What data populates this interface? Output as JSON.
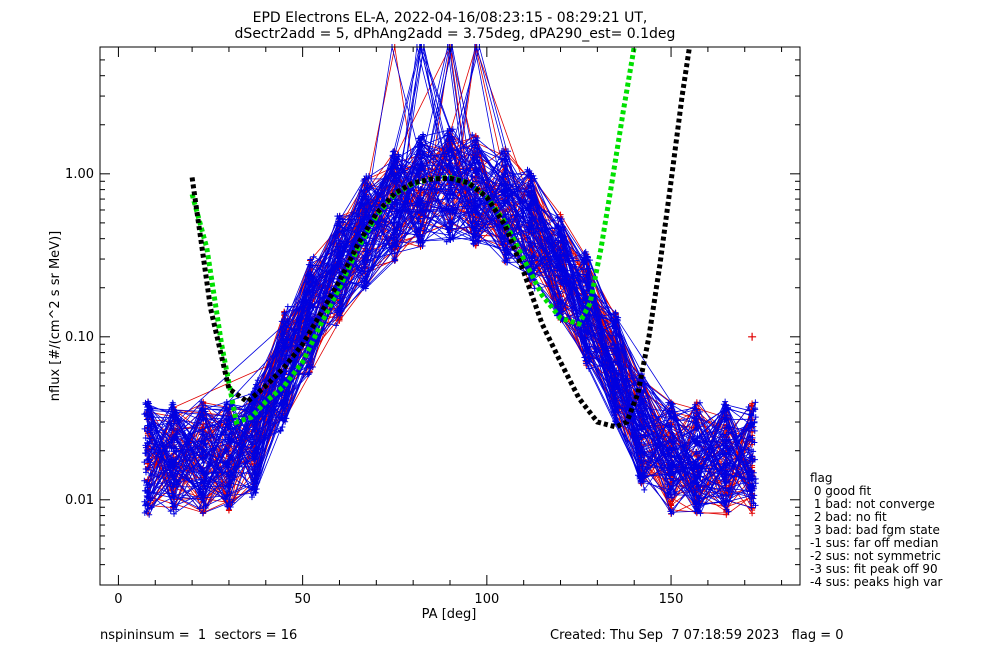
{
  "chart_data": {
    "type": "line",
    "title": "EPD Electrons EL-A, 2022-04-16/08:23:15 - 08:29:21 UT,",
    "subtitle": "dSectr2add = 5, dPhAng2add = 3.75deg, dPA290_est=   0.1deg",
    "xlabel": "PA [deg]",
    "ylabel": "nflux [#/(cm^2 s sr MeV)]",
    "xlim": [
      -5,
      185
    ],
    "ylim": [
      0.003,
      6.0
    ],
    "yscale": "log",
    "xticks": [
      0,
      50,
      100,
      150
    ],
    "yticks": [
      0.01,
      0.1,
      1.0
    ],
    "ytick_labels": [
      "0.01",
      "0.10",
      "1.00"
    ],
    "colors": {
      "red_series": "#e00000",
      "blue_series": "#0000e0",
      "green_fit": "#00e000",
      "black_fit": "#000000"
    },
    "fits": [
      {
        "color": "green",
        "x": [
          20,
          24,
          28,
          32,
          36,
          40,
          45,
          50,
          55,
          60,
          65,
          70,
          75,
          80,
          85,
          90,
          95,
          100,
          105,
          110,
          115,
          120,
          125,
          128,
          131,
          134,
          137,
          140
        ],
        "y": [
          0.75,
          0.35,
          0.09,
          0.03,
          0.032,
          0.04,
          0.05,
          0.07,
          0.12,
          0.2,
          0.35,
          0.55,
          0.75,
          0.87,
          0.93,
          0.95,
          0.88,
          0.72,
          0.5,
          0.3,
          0.18,
          0.13,
          0.12,
          0.16,
          0.35,
          0.9,
          2.4,
          6.0
        ]
      },
      {
        "color": "black",
        "x": [
          20,
          25,
          30,
          35,
          40,
          45,
          50,
          55,
          60,
          65,
          70,
          75,
          80,
          85,
          90,
          95,
          100,
          105,
          110,
          115,
          120,
          125,
          130,
          135,
          138,
          141,
          144,
          147,
          150,
          153,
          155
        ],
        "y": [
          0.95,
          0.15,
          0.048,
          0.04,
          0.05,
          0.065,
          0.09,
          0.14,
          0.22,
          0.37,
          0.57,
          0.76,
          0.88,
          0.93,
          0.94,
          0.88,
          0.72,
          0.48,
          0.25,
          0.12,
          0.07,
          0.042,
          0.03,
          0.028,
          0.03,
          0.045,
          0.1,
          0.28,
          0.9,
          3.0,
          6.0
        ]
      }
    ],
    "outlier_point": {
      "x": 172,
      "y": 0.1
    },
    "legend": {
      "title": "flag",
      "entries": [
        " 0 good fit",
        " 1 bad: not converge",
        " 2 bad: no fit",
        " 3 bad: bad fgm state",
        "-1 sus: far off median",
        "-2 sus: not symmetric",
        "-3 sus: fit peak off 90",
        "-4 sus: peaks high var"
      ]
    }
  },
  "footer": {
    "left": "nspininsum =  1  sectors = 16",
    "right": "Created: Thu Sep  7 07:18:59 2023   flag = 0"
  }
}
